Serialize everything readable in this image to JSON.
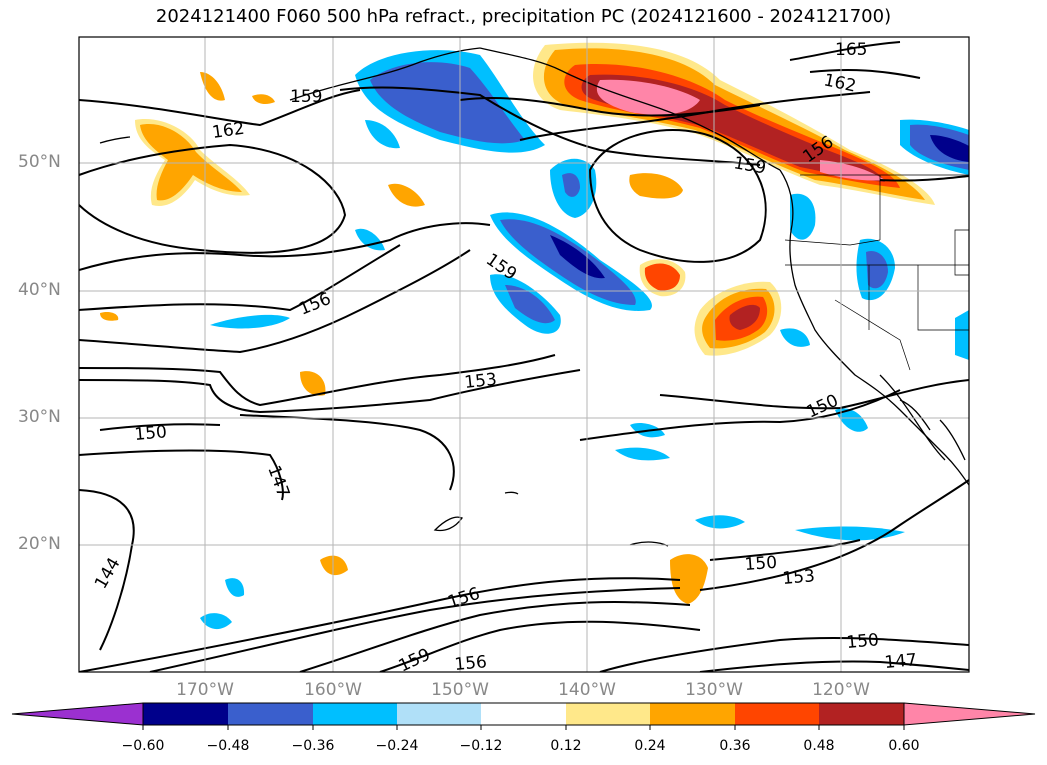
{
  "title": "2024121400 F060 500 hPa refract., precipitation PC (2024121600 - 2024121700)",
  "map": {
    "lat_labels": [
      "50°N",
      "40°N",
      "30°N",
      "20°N"
    ],
    "lon_labels": [
      "170°W",
      "160°W",
      "150°W",
      "140°W",
      "130°W",
      "120°W"
    ],
    "contour_labels": [
      "165",
      "162",
      "159",
      "162",
      "159",
      "156",
      "159",
      "156",
      "153",
      "150",
      "150",
      "147",
      "144",
      "156",
      "150",
      "153",
      "150",
      "147",
      "159",
      "156"
    ],
    "grid": true,
    "coastlines": true
  },
  "colorbar": {
    "ticks": [
      "−0.60",
      "−0.48",
      "−0.36",
      "−0.24",
      "−0.12",
      "0.12",
      "0.24",
      "0.36",
      "0.48",
      "0.60"
    ],
    "colors": [
      "#9b30d0",
      "#00008b",
      "#3a5fcd",
      "#00bfff",
      "#b0e0f8",
      "#ffffff",
      "#ffe88a",
      "#ffa500",
      "#ff4500",
      "#b22222",
      "#ff85a8"
    ]
  }
}
